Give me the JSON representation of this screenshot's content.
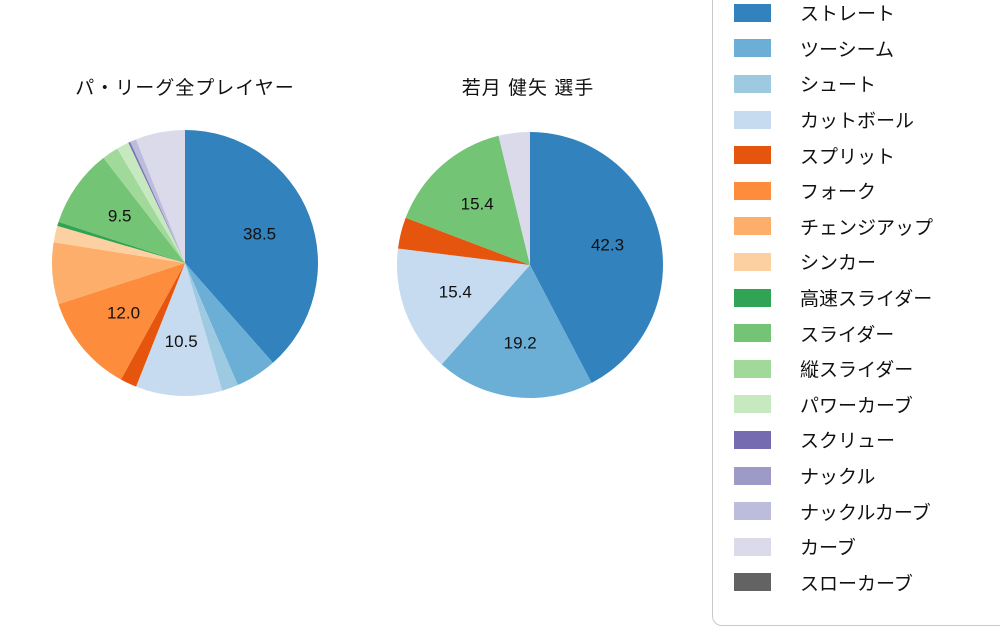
{
  "figure": {
    "background": "#ffffff",
    "text_color": "#111111",
    "legend_border_color": "#c9c9c9"
  },
  "chart_data": {
    "type": "pie",
    "palette_name": "tab20c",
    "start_angle_deg": 0,
    "direction": "clockwise_from_top",
    "label_threshold": 9.0,
    "label_format": "one_decimal",
    "legend": {
      "position": "right",
      "entries": [
        {
          "label": "ストレート",
          "color": "#3182bd"
        },
        {
          "label": "ツーシーム",
          "color": "#6baed6"
        },
        {
          "label": "シュート",
          "color": "#9ecae1"
        },
        {
          "label": "カットボール",
          "color": "#c6dbef"
        },
        {
          "label": "スプリット",
          "color": "#e6550d"
        },
        {
          "label": "フォーク",
          "color": "#fd8d3c"
        },
        {
          "label": "チェンジアップ",
          "color": "#fdae6b"
        },
        {
          "label": "シンカー",
          "color": "#fdd0a2"
        },
        {
          "label": "高速スライダー",
          "color": "#31a354"
        },
        {
          "label": "スライダー",
          "color": "#74c476"
        },
        {
          "label": "縦スライダー",
          "color": "#a1d99b"
        },
        {
          "label": "パワーカーブ",
          "color": "#c7e9c0"
        },
        {
          "label": "スクリュー",
          "color": "#756bb1"
        },
        {
          "label": "ナックル",
          "color": "#9e9ac8"
        },
        {
          "label": "ナックルカーブ",
          "color": "#bcbddc"
        },
        {
          "label": "カーブ",
          "color": "#dadaeb"
        },
        {
          "label": "スローカーブ",
          "color": "#636363"
        }
      ]
    },
    "pies": [
      {
        "title": "パ・リーグ全プレイヤー",
        "labeled_values_shown": [
          "38.5",
          "10.5",
          "12.0",
          "9.5"
        ],
        "slices": [
          {
            "label": "ストレート",
            "value": 38.5,
            "color": "#3182bd"
          },
          {
            "label": "ツーシーム",
            "value": 5.0,
            "color": "#6baed6"
          },
          {
            "label": "シュート",
            "value": 2.0,
            "color": "#9ecae1"
          },
          {
            "label": "カットボール",
            "value": 10.5,
            "color": "#c6dbef"
          },
          {
            "label": "スプリット",
            "value": 2.0,
            "color": "#e6550d"
          },
          {
            "label": "フォーク",
            "value": 12.0,
            "color": "#fd8d3c"
          },
          {
            "label": "チェンジアップ",
            "value": 7.5,
            "color": "#fdae6b"
          },
          {
            "label": "シンカー",
            "value": 2.0,
            "color": "#fdd0a2"
          },
          {
            "label": "高速スライダー",
            "value": 0.5,
            "color": "#31a354"
          },
          {
            "label": "スライダー",
            "value": 9.5,
            "color": "#74c476"
          },
          {
            "label": "縦スライダー",
            "value": 2.0,
            "color": "#a1d99b"
          },
          {
            "label": "パワーカーブ",
            "value": 1.5,
            "color": "#c7e9c0"
          },
          {
            "label": "スクリュー",
            "value": 0.2,
            "color": "#756bb1"
          },
          {
            "label": "ナックル",
            "value": 0.1,
            "color": "#9e9ac8"
          },
          {
            "label": "ナックルカーブ",
            "value": 0.7,
            "color": "#bcbddc"
          },
          {
            "label": "カーブ",
            "value": 6.0,
            "color": "#dadaeb"
          }
        ]
      },
      {
        "title": "若月 健矢 選手",
        "labeled_values_shown": [
          "42.3",
          "19.2",
          "15.4",
          "15.4"
        ],
        "slices": [
          {
            "label": "ストレート",
            "value": 42.3,
            "color": "#3182bd"
          },
          {
            "label": "ツーシーム",
            "value": 19.2,
            "color": "#6baed6"
          },
          {
            "label": "カットボール",
            "value": 15.4,
            "color": "#c6dbef"
          },
          {
            "label": "スプリット",
            "value": 3.8,
            "color": "#e6550d"
          },
          {
            "label": "スライダー",
            "value": 15.4,
            "color": "#74c476"
          },
          {
            "label": "カーブ",
            "value": 3.8,
            "color": "#dadaeb"
          }
        ]
      }
    ]
  }
}
